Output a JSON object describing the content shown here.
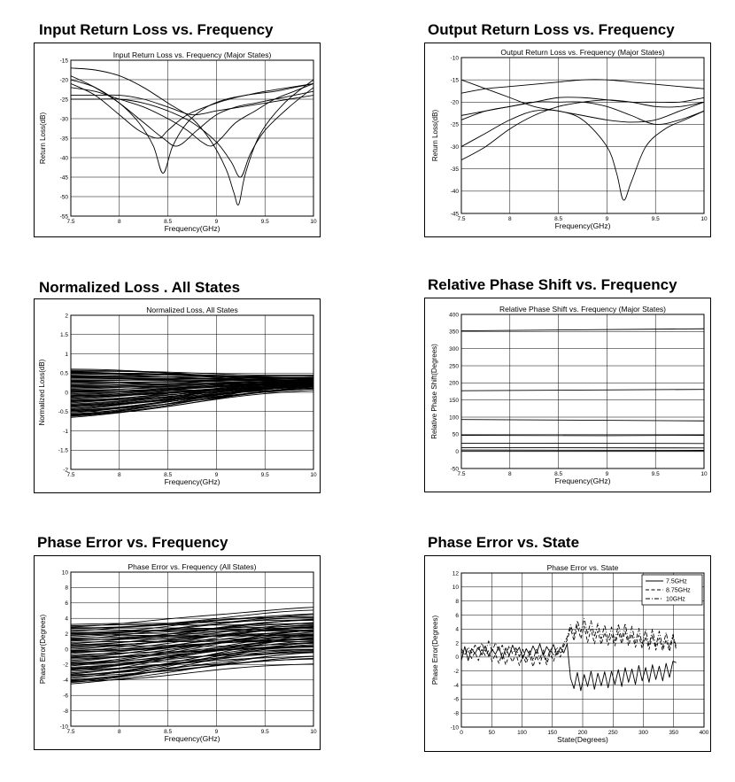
{
  "headings": [
    "Input Return Loss vs. Frequency",
    "Output Return Loss vs. Frequency",
    "Normalized Loss . All States",
    "Relative Phase Shift vs. Frequency",
    "Phase Error vs. Frequency",
    "Phase Error vs. State"
  ],
  "chart_data": [
    {
      "type": "line",
      "title": "Input Return Loss vs. Frequency (Major States)",
      "xlabel": "Frequency(GHz)",
      "ylabel": "Return Loss(dB)",
      "xlim": [
        7.5,
        10
      ],
      "ylim": [
        -55,
        -15
      ],
      "xticks": [
        "7.5",
        "8",
        "8.5",
        "9",
        "9.5",
        "10"
      ],
      "yticks": [
        "-15",
        "-20",
        "-25",
        "-30",
        "-35",
        "-40",
        "-45",
        "-50",
        "-55"
      ],
      "grid": true,
      "series": [
        {
          "x": [
            7.5,
            7.75,
            8.0,
            8.2,
            8.35,
            8.45,
            8.55,
            8.7,
            8.9,
            9.1,
            9.3,
            9.5,
            9.75,
            10.0
          ],
          "values": [
            -20,
            -22,
            -26,
            -31,
            -37,
            -44,
            -37,
            -31,
            -27,
            -25,
            -24,
            -23,
            -22,
            -21
          ]
        },
        {
          "x": [
            7.5,
            7.75,
            8.0,
            8.25,
            8.45,
            8.6,
            8.8,
            9.0,
            9.2,
            9.4,
            9.6,
            9.8,
            10.0
          ],
          "values": [
            -19,
            -22,
            -26,
            -31,
            -35,
            -37,
            -33,
            -29,
            -27,
            -26,
            -25,
            -24,
            -23
          ]
        },
        {
          "x": [
            7.5,
            7.75,
            8.0,
            8.2,
            8.4,
            8.5,
            8.7,
            9.0,
            9.3,
            9.6,
            9.8,
            10.0
          ],
          "values": [
            -21,
            -24,
            -29,
            -33,
            -35,
            -33,
            -29,
            -26,
            -24,
            -23,
            -22,
            -21
          ]
        },
        {
          "x": [
            7.5,
            7.75,
            8.0,
            8.25,
            8.5,
            8.7,
            8.85,
            8.95,
            9.05,
            9.2,
            9.4,
            9.6,
            9.8,
            10.0
          ],
          "values": [
            -22,
            -23,
            -25,
            -27,
            -30,
            -33,
            -36,
            -37,
            -35,
            -31,
            -28,
            -25,
            -23,
            -21
          ]
        },
        {
          "x": [
            7.5,
            7.75,
            8.0,
            8.25,
            8.5,
            8.75,
            9.0,
            9.15,
            9.25,
            9.35,
            9.5,
            9.75,
            10.0
          ],
          "values": [
            -25,
            -25,
            -25,
            -26,
            -28,
            -31,
            -36,
            -41,
            -45,
            -39,
            -33,
            -27,
            -22
          ]
        },
        {
          "x": [
            7.5,
            7.75,
            8.0,
            8.25,
            8.5,
            8.75,
            8.95,
            9.1,
            9.18,
            9.23,
            9.3,
            9.45,
            9.7,
            10.0
          ],
          "values": [
            -17,
            -17.5,
            -19,
            -22,
            -26,
            -30,
            -36,
            -43,
            -49,
            -52,
            -44,
            -34,
            -26,
            -20
          ]
        },
        {
          "x": [
            7.5,
            7.75,
            8.0,
            8.25,
            8.5,
            8.75,
            9.0,
            9.25,
            9.5,
            9.75,
            10.0
          ],
          "values": [
            -24,
            -24,
            -24,
            -25,
            -27,
            -29,
            -28,
            -27,
            -26,
            -25,
            -24
          ]
        }
      ]
    },
    {
      "type": "line",
      "title": "Output Return Loss vs. Frequency (Major States)",
      "xlabel": "Frequency(GHz)",
      "ylabel": "Return Loss(dB)",
      "xlim": [
        7.5,
        10
      ],
      "ylim": [
        -45,
        -10
      ],
      "xticks": [
        "7.5",
        "8",
        "8.5",
        "9",
        "9.5",
        "10"
      ],
      "yticks": [
        "-10",
        "-15",
        "-20",
        "-25",
        "-30",
        "-35",
        "-40",
        "-45"
      ],
      "grid": true,
      "series": [
        {
          "x": [
            7.5,
            7.75,
            8.0,
            8.25,
            8.5,
            8.75,
            9.0,
            9.25,
            9.5,
            9.75,
            10.0
          ],
          "values": [
            -18,
            -17,
            -16.5,
            -16,
            -15.5,
            -15,
            -15,
            -15.5,
            -16,
            -16.5,
            -17
          ]
        },
        {
          "x": [
            7.5,
            7.75,
            8.0,
            8.25,
            8.5,
            8.75,
            9.0,
            9.25,
            9.5,
            9.75,
            10.0
          ],
          "values": [
            -15,
            -17,
            -19,
            -21,
            -22,
            -23,
            -24,
            -24.5,
            -24,
            -22,
            -20
          ]
        },
        {
          "x": [
            7.5,
            7.75,
            8.0,
            8.25,
            8.5,
            8.75,
            9.0,
            9.25,
            9.5,
            9.75,
            10.0
          ],
          "values": [
            -23,
            -22,
            -21,
            -20,
            -20,
            -20,
            -21,
            -23,
            -25,
            -24,
            -22
          ]
        },
        {
          "x": [
            7.5,
            7.75,
            8.0,
            8.25,
            8.5,
            8.75,
            9.0,
            9.25,
            9.5,
            9.75,
            10.0
          ],
          "values": [
            -24,
            -22,
            -21,
            -20,
            -19,
            -19,
            -19.5,
            -20,
            -20,
            -20,
            -19
          ]
        },
        {
          "x": [
            7.5,
            7.75,
            8.0,
            8.25,
            8.5,
            8.75,
            9.0,
            9.1,
            9.17,
            9.25,
            9.4,
            9.6,
            9.8,
            10.0
          ],
          "values": [
            -30,
            -27,
            -24,
            -22,
            -22,
            -24,
            -30,
            -36,
            -42,
            -38,
            -30,
            -26,
            -24,
            -22
          ]
        },
        {
          "x": [
            7.5,
            7.75,
            8.0,
            8.25,
            8.5,
            8.75,
            9.0,
            9.25,
            9.5,
            9.75,
            10.0
          ],
          "values": [
            -33,
            -30,
            -26,
            -23,
            -21,
            -20,
            -19.5,
            -20,
            -21,
            -21,
            -20
          ]
        }
      ]
    },
    {
      "type": "line",
      "title": "Normalized Loss, All States",
      "xlabel": "Frequency(GHz)",
      "ylabel": "Normalized Loss(dB)",
      "xlim": [
        7.5,
        10
      ],
      "ylim": [
        -2,
        2
      ],
      "xticks": [
        "7.5",
        "8",
        "8.5",
        "9",
        "9.5",
        "10"
      ],
      "yticks": [
        "2",
        "1.5",
        "1",
        "0.5",
        "0",
        "-0.5",
        "-1",
        "-1.5",
        "-2"
      ],
      "grid": true,
      "series_band": {
        "count": 64,
        "x_start": 7.5,
        "x_end": 10,
        "start_min": -0.65,
        "start_max": 0.6,
        "end_min": 0.05,
        "end_max": 0.45
      }
    },
    {
      "type": "line",
      "title": "Relative Phase Shift vs. Frequency (Major States)",
      "xlabel": "Frequency(GHz)",
      "ylabel": "Relative Phase Shift(Degrees)",
      "xlim": [
        7.5,
        10
      ],
      "ylim": [
        -50,
        400
      ],
      "xticks": [
        "7.5",
        "8",
        "8.5",
        "9",
        "9.5",
        "10"
      ],
      "yticks": [
        "400",
        "350",
        "300",
        "250",
        "200",
        "150",
        "100",
        "50",
        "0",
        "-50"
      ],
      "grid": true,
      "series": [
        {
          "x": [
            7.5,
            10
          ],
          "values": [
            352,
            358
          ]
        },
        {
          "x": [
            7.5,
            10
          ],
          "values": [
            177,
            181
          ]
        },
        {
          "x": [
            7.5,
            10
          ],
          "values": [
            93,
            89
          ]
        },
        {
          "x": [
            7.5,
            9.0,
            10
          ],
          "values": [
            47,
            46,
            47
          ]
        },
        {
          "x": [
            7.5,
            10
          ],
          "values": [
            24,
            23
          ]
        },
        {
          "x": [
            7.5,
            10
          ],
          "values": [
            11,
            10
          ]
        },
        {
          "x": [
            7.5,
            10
          ],
          "values": [
            4,
            3
          ]
        },
        {
          "x": [
            7.5,
            10
          ],
          "values": [
            0,
            0
          ]
        }
      ]
    },
    {
      "type": "line",
      "title": "Phase Error vs. Frequency (All States)",
      "xlabel": "Frequency(GHz)",
      "ylabel": "Phase Error(Degrees)",
      "xlim": [
        7.5,
        10
      ],
      "ylim": [
        -10,
        10
      ],
      "xticks": [
        "7.5",
        "8",
        "8.5",
        "9",
        "9.5",
        "10"
      ],
      "yticks": [
        "10",
        "8",
        "6",
        "4",
        "2",
        "0",
        "-2",
        "-4",
        "-6",
        "-8",
        "-10"
      ],
      "grid": true,
      "series_band": {
        "count": 64,
        "x_start": 7.5,
        "x_end": 10,
        "start_min": -4.5,
        "start_max": 3.2,
        "end_min": -2.0,
        "end_max": 5.6
      }
    },
    {
      "type": "line",
      "title": "Phase Error vs. State",
      "xlabel": "State(Degrees)",
      "ylabel": "Phase Error(Degrees)",
      "xlim": [
        0,
        400
      ],
      "ylim": [
        -10,
        12
      ],
      "xticks": [
        "0",
        "50",
        "100",
        "150",
        "200",
        "250",
        "300",
        "350",
        "400"
      ],
      "yticks": [
        "12",
        "10",
        "8",
        "6",
        "4",
        "2",
        "0",
        "-2",
        "-4",
        "-6",
        "-8",
        "-10"
      ],
      "grid": true,
      "legend": "top-right",
      "series": [
        {
          "name": "7.5GHz",
          "dash": "solid",
          "x": [
            0,
            5.6,
            11.2,
            16.9,
            22.5,
            28.1,
            33.8,
            39.4,
            45,
            50.6,
            56.2,
            61.9,
            67.5,
            73.1,
            78.8,
            84.4,
            90,
            95.6,
            101.2,
            106.9,
            112.5,
            118.1,
            123.8,
            129.4,
            135,
            140.6,
            146.2,
            151.9,
            157.5,
            163.1,
            168.8,
            174.4,
            180,
            185.6,
            191.2,
            196.9,
            202.5,
            208.1,
            213.8,
            219.4,
            225,
            230.6,
            236.2,
            241.9,
            247.5,
            253.1,
            258.8,
            264.4,
            270,
            275.6,
            281.2,
            286.9,
            292.5,
            298.1,
            303.8,
            309.4,
            315,
            320.6,
            326.2,
            331.9,
            337.5,
            343.1,
            348.8,
            354.4
          ],
          "values": [
            -0.5,
            1.5,
            -0.5,
            1.2,
            0.5,
            1.4,
            0.3,
            1.6,
            0.1,
            1.1,
            0.4,
            1.5,
            -0.3,
            1.3,
            0.2,
            1.7,
            0.6,
            1.4,
            -0.2,
            1.2,
            0.3,
            1.6,
            0.5,
            1.9,
            0.2,
            1.5,
            0.7,
            1.8,
            0.3,
            1.4,
            0.6,
            1.9,
            -3.0,
            -4.5,
            -2.2,
            -4.8,
            -2.5,
            -4.2,
            -2.0,
            -4.6,
            -2.3,
            -4.1,
            -2.1,
            -4.4,
            -2.0,
            -3.9,
            -1.8,
            -4.2,
            -1.5,
            -3.6,
            -1.7,
            -3.9,
            -1.2,
            -3.4,
            -1.5,
            -3.6,
            -1.1,
            -3.2,
            -1.3,
            -3.4,
            -0.9,
            -2.9,
            -0.6,
            -0.8
          ]
        },
        {
          "name": "8.75GHz",
          "dash": "dashed",
          "x": [
            0,
            5.6,
            11.2,
            16.9,
            22.5,
            28.1,
            33.8,
            39.4,
            45,
            50.6,
            56.2,
            61.9,
            67.5,
            73.1,
            78.8,
            84.4,
            90,
            95.6,
            101.2,
            106.9,
            112.5,
            118.1,
            123.8,
            129.4,
            135,
            140.6,
            146.2,
            151.9,
            157.5,
            163.1,
            168.8,
            174.4,
            180,
            185.6,
            191.2,
            196.9,
            202.5,
            208.1,
            213.8,
            219.4,
            225,
            230.6,
            236.2,
            241.9,
            247.5,
            253.1,
            258.8,
            264.4,
            270,
            275.6,
            281.2,
            286.9,
            292.5,
            298.1,
            303.8,
            309.4,
            315,
            320.6,
            326.2,
            331.9,
            337.5,
            343.1,
            348.8,
            354.4
          ],
          "values": [
            0.8,
            0.3,
            1.0,
            -0.2,
            0.7,
            -0.5,
            1.1,
            0.2,
            0.9,
            -0.6,
            0.4,
            -0.9,
            0.6,
            -1.1,
            0.3,
            -0.7,
            0.5,
            -1.2,
            0.2,
            -0.9,
            0.4,
            -1.4,
            0.2,
            -1.0,
            0.6,
            -1.1,
            0.5,
            -0.6,
            0.9,
            0.0,
            1.6,
            2.4,
            4.1,
            2.3,
            4.5,
            2.6,
            4.4,
            2.1,
            4.0,
            1.9,
            3.7,
            1.8,
            3.5,
            1.7,
            3.2,
            1.6,
            3.6,
            1.9,
            3.7,
            1.6,
            3.3,
            1.4,
            3.1,
            1.2,
            2.9,
            1.1,
            3.1,
            1.0,
            2.7,
            0.9,
            2.5,
            0.8,
            2.9,
            1.0
          ]
        },
        {
          "name": "10GHz",
          "dash": "dashdot",
          "x": [
            0,
            5.6,
            11.2,
            16.9,
            22.5,
            28.1,
            33.8,
            39.4,
            45,
            50.6,
            56.2,
            61.9,
            67.5,
            73.1,
            78.8,
            84.4,
            90,
            95.6,
            101.2,
            106.9,
            112.5,
            118.1,
            123.8,
            129.4,
            135,
            140.6,
            146.2,
            151.9,
            157.5,
            163.1,
            168.8,
            174.4,
            180,
            185.6,
            191.2,
            196.9,
            202.5,
            208.1,
            213.8,
            219.4,
            225,
            230.6,
            236.2,
            241.9,
            247.5,
            253.1,
            258.8,
            264.4,
            270,
            275.6,
            281.2,
            286.9,
            292.5,
            298.1,
            303.8,
            309.4,
            315,
            320.6,
            326.2,
            331.9,
            337.5,
            343.1,
            348.8,
            354.4
          ],
          "values": [
            1.2,
            0.4,
            1.4,
            0.6,
            1.7,
            1.0,
            2.0,
            0.7,
            2.3,
            0.8,
            2.0,
            0.9,
            1.7,
            0.3,
            1.6,
            0.5,
            1.3,
            0.1,
            1.1,
            -0.3,
            0.9,
            -0.5,
            1.2,
            -0.2,
            1.0,
            -0.6,
            1.1,
            0.2,
            1.4,
            0.6,
            2.0,
            2.8,
            4.6,
            3.0,
            5.2,
            3.6,
            5.5,
            3.3,
            5.2,
            2.9,
            4.8,
            2.6,
            4.6,
            2.4,
            4.3,
            2.2,
            4.7,
            2.5,
            4.8,
            2.2,
            4.4,
            2.0,
            4.1,
            1.8,
            3.9,
            1.6,
            4.0,
            1.5,
            3.7,
            1.4,
            3.5,
            1.3,
            3.2,
            1.4
          ]
        }
      ]
    }
  ]
}
